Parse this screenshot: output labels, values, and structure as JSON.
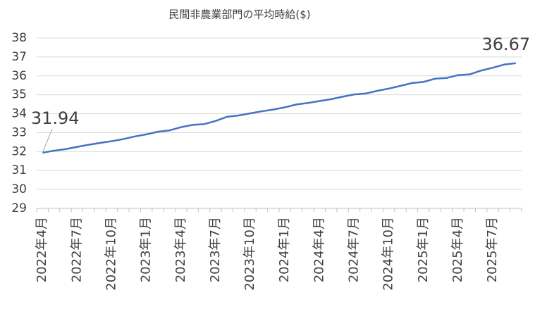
{
  "chart_data": {
    "type": "line",
    "title": "民間非農業部門の平均時給($)",
    "categories": [
      "2022年4月",
      null,
      null,
      "2022年7月",
      null,
      null,
      "2022年10月",
      null,
      null,
      "2023年1月",
      null,
      null,
      "2023年4月",
      null,
      null,
      "2023年7月",
      null,
      null,
      "2023年10月",
      null,
      null,
      "2024年1月",
      null,
      null,
      "2024年4月",
      null,
      null,
      "2024年7月",
      null,
      null,
      "2024年10月",
      null,
      null,
      "2025年1月",
      null,
      null,
      "2025年4月",
      null,
      null,
      "2025年7月",
      null,
      null
    ],
    "series": [
      {
        "name": "平均時給",
        "color": "#4472c4",
        "values": [
          31.94,
          32.05,
          32.13,
          32.25,
          32.36,
          32.46,
          32.55,
          32.66,
          32.8,
          32.91,
          33.05,
          33.12,
          33.29,
          33.41,
          33.45,
          33.62,
          33.84,
          33.91,
          34.02,
          34.13,
          34.22,
          34.34,
          34.49,
          34.57,
          34.67,
          34.77,
          34.9,
          35.02,
          35.07,
          35.21,
          35.33,
          35.47,
          35.62,
          35.68,
          35.85,
          35.89,
          36.04,
          36.08,
          36.28,
          36.43,
          36.6,
          36.67
        ]
      }
    ],
    "data_labels": [
      0,
      41
    ],
    "ylim": [
      29,
      38
    ],
    "yticks": [
      29,
      30,
      31,
      32,
      33,
      34,
      35,
      36,
      37,
      38
    ],
    "grid": true
  }
}
